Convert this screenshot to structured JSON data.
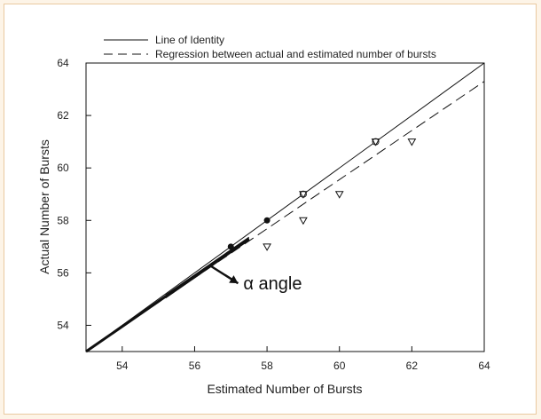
{
  "chart_data": {
    "type": "scatter",
    "title": "",
    "xlabel": "Estimated Number of Bursts",
    "ylabel": "Actual Number of Bursts",
    "xlim": [
      53,
      64
    ],
    "ylim": [
      53,
      64
    ],
    "x_ticks": [
      54,
      56,
      58,
      60,
      62,
      64
    ],
    "y_ticks": [
      54,
      56,
      58,
      60,
      62,
      64
    ],
    "grid": false,
    "legend_position": "top-left",
    "series": [
      {
        "name": "Line of Identity",
        "kind": "line",
        "style": "solid",
        "points": [
          [
            53,
            53
          ],
          [
            64,
            64
          ]
        ]
      },
      {
        "name": "Regression between actual and estimated number of bursts",
        "kind": "line",
        "style": "dashed",
        "points": [
          [
            53,
            53
          ],
          [
            64,
            63.3
          ]
        ]
      }
    ],
    "markers": {
      "filled_circles": [
        [
          57,
          57
        ],
        [
          58,
          58
        ]
      ],
      "open_circles": [
        [
          59,
          59
        ],
        [
          61,
          61
        ]
      ],
      "open_triangles": [
        [
          58,
          57
        ],
        [
          59,
          58
        ],
        [
          59,
          59
        ],
        [
          60,
          59
        ],
        [
          61,
          61
        ],
        [
          62,
          61
        ]
      ]
    },
    "dense_band": {
      "from": [
        53,
        53
      ],
      "to": [
        57.5,
        57.3
      ]
    },
    "annotation": {
      "text": "α angle",
      "arrow_from": [
        56.4,
        56.3
      ],
      "arrow_to": [
        57.2,
        55.6
      ]
    }
  },
  "colors": {
    "ink": "#111111",
    "page_bg": "#fdf4e7",
    "frame_border": "#e9c9a0"
  }
}
